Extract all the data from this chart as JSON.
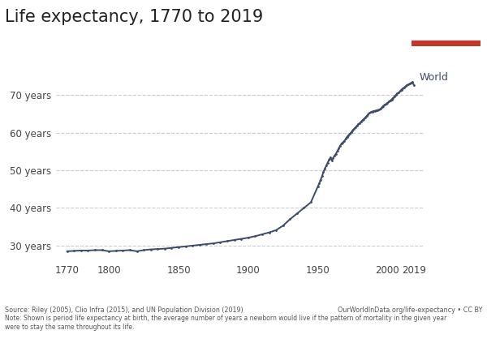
{
  "title": "Life expectancy, 1770 to 2019",
  "title_fontsize": 15,
  "line_color": "#3d4b6b",
  "line_width": 1.4,
  "marker": "o",
  "marker_size": 2.0,
  "ylabel_ticks": [
    "30 years",
    "40 years",
    "50 years",
    "60 years",
    "70 years"
  ],
  "ytick_values": [
    30,
    40,
    50,
    60,
    70
  ],
  "xtick_values": [
    1770,
    1800,
    1850,
    1900,
    1950,
    2000,
    2019
  ],
  "xlim": [
    1762,
    2026
  ],
  "ylim": [
    26,
    77
  ],
  "grid_color": "#cccccc",
  "grid_linestyle": "--",
  "bg_color": "#ffffff",
  "label_world": "World",
  "label_world_fontsize": 9,
  "source_text": "Source: Riley (2005), Clio Infra (2015), and UN Population Division (2019)",
  "source_right": "OurWorldInData.org/life-expectancy • CC BY",
  "note_text": "Note: Shown is period life expectancy at birth, the average number of years a newborn would live if the pattern of mortality in the given year\nwere to stay the same throughout its life.",
  "owid_box_color": "#1a3a5c",
  "owid_red": "#c0392b",
  "years": [
    1770,
    1775,
    1780,
    1785,
    1790,
    1795,
    1800,
    1805,
    1810,
    1815,
    1820,
    1825,
    1830,
    1835,
    1840,
    1845,
    1850,
    1855,
    1860,
    1865,
    1870,
    1875,
    1880,
    1885,
    1890,
    1895,
    1900,
    1905,
    1910,
    1915,
    1920,
    1925,
    1930,
    1935,
    1940,
    1945,
    1950,
    1951,
    1952,
    1953,
    1954,
    1955,
    1956,
    1957,
    1958,
    1959,
    1960,
    1961,
    1962,
    1963,
    1964,
    1965,
    1966,
    1967,
    1968,
    1969,
    1970,
    1971,
    1972,
    1973,
    1974,
    1975,
    1976,
    1977,
    1978,
    1979,
    1980,
    1981,
    1982,
    1983,
    1984,
    1985,
    1986,
    1987,
    1988,
    1989,
    1990,
    1991,
    1992,
    1993,
    1994,
    1995,
    1996,
    1997,
    1998,
    1999,
    2000,
    2001,
    2002,
    2003,
    2004,
    2005,
    2006,
    2007,
    2008,
    2009,
    2010,
    2011,
    2012,
    2013,
    2014,
    2015,
    2016,
    2017,
    2018,
    2019
  ],
  "life_expectancy": [
    28.5,
    28.6,
    28.7,
    28.7,
    28.8,
    28.8,
    28.5,
    28.6,
    28.7,
    28.8,
    28.5,
    28.8,
    29.0,
    29.1,
    29.2,
    29.4,
    29.6,
    29.8,
    30.0,
    30.2,
    30.4,
    30.6,
    30.9,
    31.2,
    31.5,
    31.8,
    32.1,
    32.5,
    33.0,
    33.5,
    34.1,
    35.3,
    37.0,
    38.5,
    40.0,
    41.5,
    45.7,
    46.5,
    47.5,
    48.4,
    49.5,
    50.4,
    51.2,
    52.0,
    52.7,
    53.4,
    52.6,
    53.3,
    53.9,
    54.4,
    55.1,
    55.8,
    56.5,
    57.1,
    57.4,
    57.8,
    58.3,
    58.9,
    59.3,
    59.7,
    60.1,
    60.6,
    61.0,
    61.4,
    61.8,
    62.2,
    62.5,
    62.9,
    63.3,
    63.6,
    64.0,
    64.4,
    64.8,
    65.2,
    65.4,
    65.6,
    65.7,
    65.8,
    65.9,
    66.0,
    66.1,
    66.3,
    66.7,
    67.1,
    67.4,
    67.6,
    67.9,
    68.2,
    68.5,
    68.8,
    69.2,
    69.6,
    70.0,
    70.4,
    70.6,
    71.0,
    71.4,
    71.7,
    72.0,
    72.3,
    72.6,
    72.8,
    73.0,
    73.2,
    73.4,
    72.6
  ]
}
